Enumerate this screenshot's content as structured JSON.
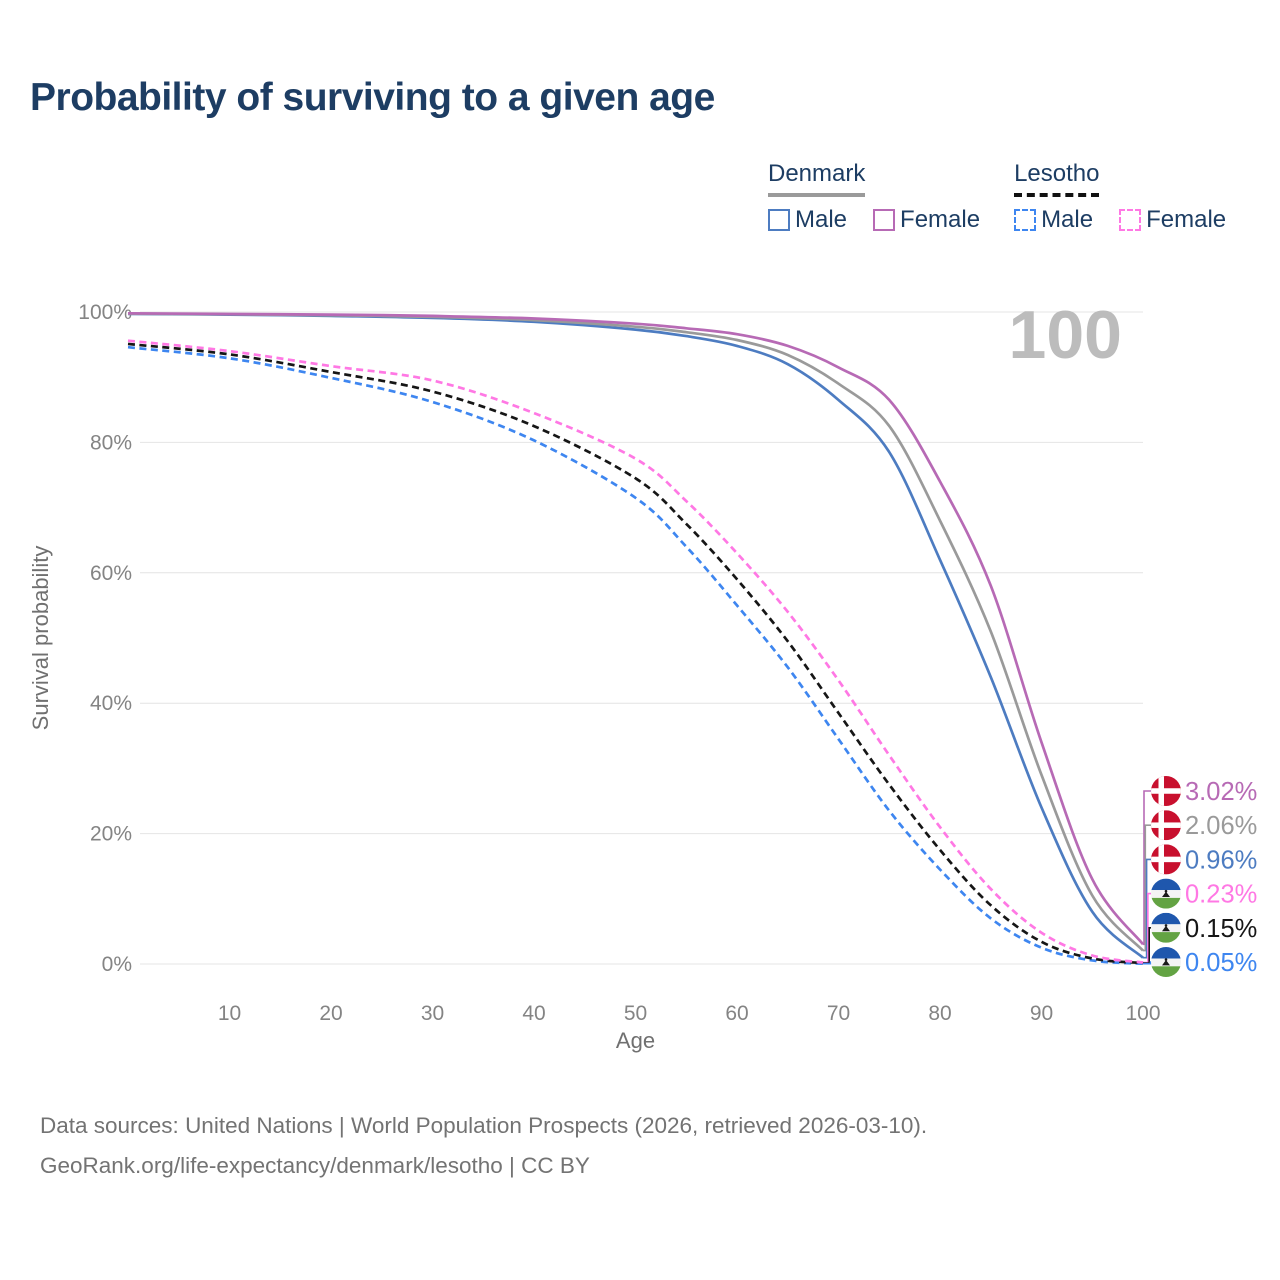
{
  "title": "Probability of surviving to a given age",
  "watermark": "100",
  "legend": {
    "groups": [
      {
        "name": "Denmark",
        "underline_style": "solid",
        "underline_color": "#9a9a9a",
        "items": [
          {
            "label": "Male",
            "color": "#4d7cc1",
            "dashed": false
          },
          {
            "label": "Female",
            "color": "#b76ab5",
            "dashed": false
          }
        ]
      },
      {
        "name": "Lesotho",
        "underline_style": "dashed",
        "underline_color": "#111111",
        "items": [
          {
            "label": "Male",
            "color": "#3e86f0",
            "dashed": true
          },
          {
            "label": "Female",
            "color": "#ff78e4",
            "dashed": true
          }
        ]
      }
    ]
  },
  "chart_data": {
    "type": "line",
    "title": "Probability of surviving to a given age",
    "xlabel": "Age",
    "ylabel": "Survival probability",
    "xlim": [
      0,
      100
    ],
    "ylim": [
      0,
      100
    ],
    "grid": true,
    "x_ticks": [
      10,
      20,
      30,
      40,
      50,
      60,
      70,
      80,
      90,
      100
    ],
    "y_ticks": [
      0,
      20,
      40,
      60,
      80,
      100
    ],
    "y_tick_suffix": "%",
    "ages": [
      0,
      10,
      20,
      30,
      40,
      50,
      55,
      60,
      65,
      70,
      75,
      80,
      85,
      90,
      95,
      100
    ],
    "series": [
      {
        "name": "Denmark Female",
        "country": "denmark",
        "sex": "Female",
        "color": "#b76ab5",
        "dashed": false,
        "end_label": "3.02%",
        "values": [
          99.8,
          99.7,
          99.6,
          99.4,
          99.0,
          98.2,
          97.5,
          96.6,
          94.8,
          91.5,
          86.5,
          74.0,
          58.0,
          34.0,
          13.0,
          3.02
        ]
      },
      {
        "name": "Denmark",
        "country": "denmark",
        "sex": "",
        "color": "#9a9a9a",
        "dashed": false,
        "end_label": "2.06%",
        "values": [
          99.75,
          99.65,
          99.5,
          99.25,
          98.75,
          97.75,
          96.9,
          95.7,
          93.4,
          89.0,
          82.5,
          68.0,
          51.0,
          29.0,
          10.5,
          2.06
        ]
      },
      {
        "name": "Denmark Male",
        "country": "denmark",
        "sex": "Male",
        "color": "#4d7cc1",
        "dashed": false,
        "end_label": "0.96%",
        "values": [
          99.7,
          99.6,
          99.4,
          99.1,
          98.5,
          97.3,
          96.3,
          94.8,
          92.0,
          86.5,
          78.5,
          62.0,
          44.0,
          24.0,
          8.0,
          0.96
        ]
      },
      {
        "name": "Lesotho Female",
        "country": "lesotho",
        "sex": "Female",
        "color": "#ff78e4",
        "dashed": true,
        "end_label": "0.23%",
        "values": [
          95.6,
          94.0,
          91.7,
          89.5,
          84.5,
          77.5,
          71.0,
          63.0,
          54.0,
          43.5,
          32.0,
          21.0,
          11.5,
          4.8,
          1.3,
          0.23
        ]
      },
      {
        "name": "Lesotho",
        "country": "lesotho",
        "sex": "",
        "color": "#161616",
        "dashed": true,
        "end_label": "0.15%",
        "values": [
          95.1,
          93.5,
          90.8,
          87.8,
          82.5,
          74.5,
          67.5,
          59.0,
          49.5,
          38.5,
          27.5,
          17.5,
          9.0,
          3.4,
          0.85,
          0.15
        ]
      },
      {
        "name": "Lesotho Male",
        "country": "lesotho",
        "sex": "Male",
        "color": "#3e86f0",
        "dashed": true,
        "end_label": "0.05%",
        "values": [
          94.6,
          92.9,
          89.9,
          86.2,
          80.3,
          71.5,
          64.0,
          55.0,
          45.5,
          34.5,
          23.5,
          14.5,
          7.0,
          2.5,
          0.55,
          0.05
        ]
      }
    ],
    "flag_colors": {
      "denmark_red": "#c8102e",
      "lesotho_blue": "#1f57ad",
      "lesotho_green": "#63a343",
      "hat_black": "#1a1a1a"
    }
  },
  "footer": {
    "line1": "Data sources: United Nations | World Population Prospects (2026, retrieved 2026-03-10).",
    "line2": "GeoRank.org/life-expectancy/denmark/lesotho | CC BY"
  }
}
